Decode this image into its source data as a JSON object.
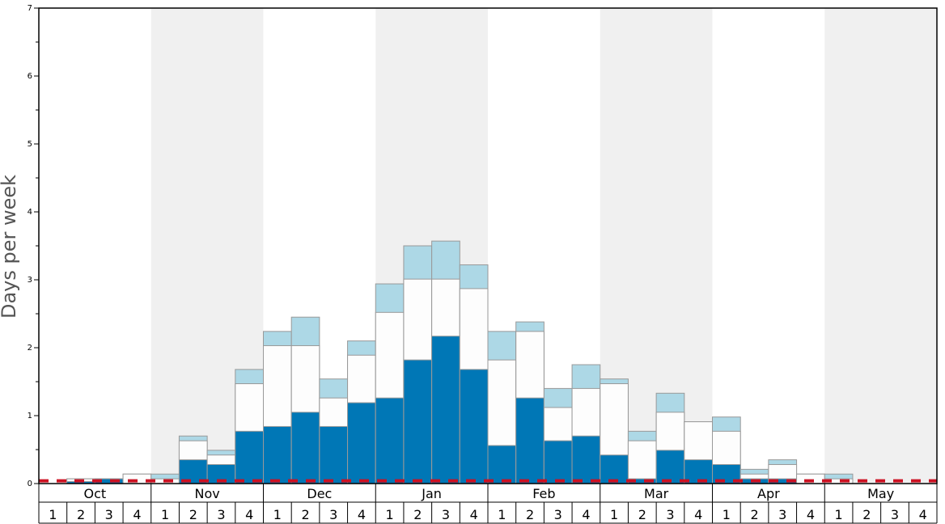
{
  "chart_data": {
    "type": "bar",
    "ylabel": "Days per week",
    "ylim": [
      0,
      7
    ],
    "y_ticks": [
      0,
      1,
      2,
      3,
      4,
      5,
      6,
      7
    ],
    "months": [
      "Oct",
      "Nov",
      "Dec",
      "Jan",
      "Feb",
      "Mar",
      "Apr",
      "May"
    ],
    "weeks_per_month": [
      "1",
      "2",
      "3",
      "4"
    ],
    "shaded_months": [
      "Nov",
      "Jan",
      "Mar",
      "May"
    ],
    "categories": [
      "Oct 1",
      "Oct 2",
      "Oct 3",
      "Oct 4",
      "Nov 1",
      "Nov 2",
      "Nov 3",
      "Nov 4",
      "Dec 1",
      "Dec 2",
      "Dec 3",
      "Dec 4",
      "Jan 1",
      "Jan 2",
      "Jan 3",
      "Jan 4",
      "Feb 1",
      "Feb 2",
      "Feb 3",
      "Feb 4",
      "Mar 1",
      "Mar 2",
      "Mar 3",
      "Mar 4",
      "Apr 1",
      "Apr 2",
      "Apr 3",
      "Apr 4",
      "May 1",
      "May 2",
      "May 3",
      "May 4"
    ],
    "series": [
      {
        "color": "#0077b6",
        "values": [
          0,
          0.03,
          0.07,
          0,
          0,
          0.35,
          0.28,
          0.77,
          0.84,
          1.05,
          0.84,
          1.19,
          1.26,
          1.82,
          2.17,
          1.68,
          0.56,
          1.26,
          0.63,
          0.7,
          0.42,
          0.07,
          0.49,
          0.35,
          0.28,
          0.07,
          0.07,
          0,
          0,
          0,
          0,
          0
        ]
      },
      {
        "color": "#fdfdfd",
        "values": [
          0,
          0.07,
          0.07,
          0.14,
          0.07,
          0.63,
          0.42,
          1.47,
          2.03,
          2.03,
          1.26,
          1.89,
          2.52,
          3.01,
          3.01,
          2.87,
          1.82,
          2.24,
          1.12,
          1.4,
          1.47,
          0.63,
          1.05,
          0.91,
          0.77,
          0.14,
          0.28,
          0.14,
          0.07,
          0,
          0,
          0
        ]
      },
      {
        "color": "#add8e6",
        "values": [
          0,
          0.07,
          0.07,
          0.14,
          0.14,
          0.7,
          0.49,
          1.68,
          2.24,
          2.45,
          1.54,
          2.1,
          2.94,
          3.5,
          3.57,
          3.22,
          2.24,
          2.38,
          1.4,
          1.75,
          1.54,
          0.77,
          1.33,
          0.91,
          0.98,
          0.21,
          0.35,
          0.14,
          0.14,
          0,
          0,
          0
        ]
      }
    ],
    "reference_line": {
      "value": 0.04,
      "color": "#cc1122",
      "style": "dashed"
    },
    "grid": false,
    "colors": {
      "shade": "#f0f0f0",
      "bar_stroke": "#999999",
      "axis": "#000000"
    }
  }
}
